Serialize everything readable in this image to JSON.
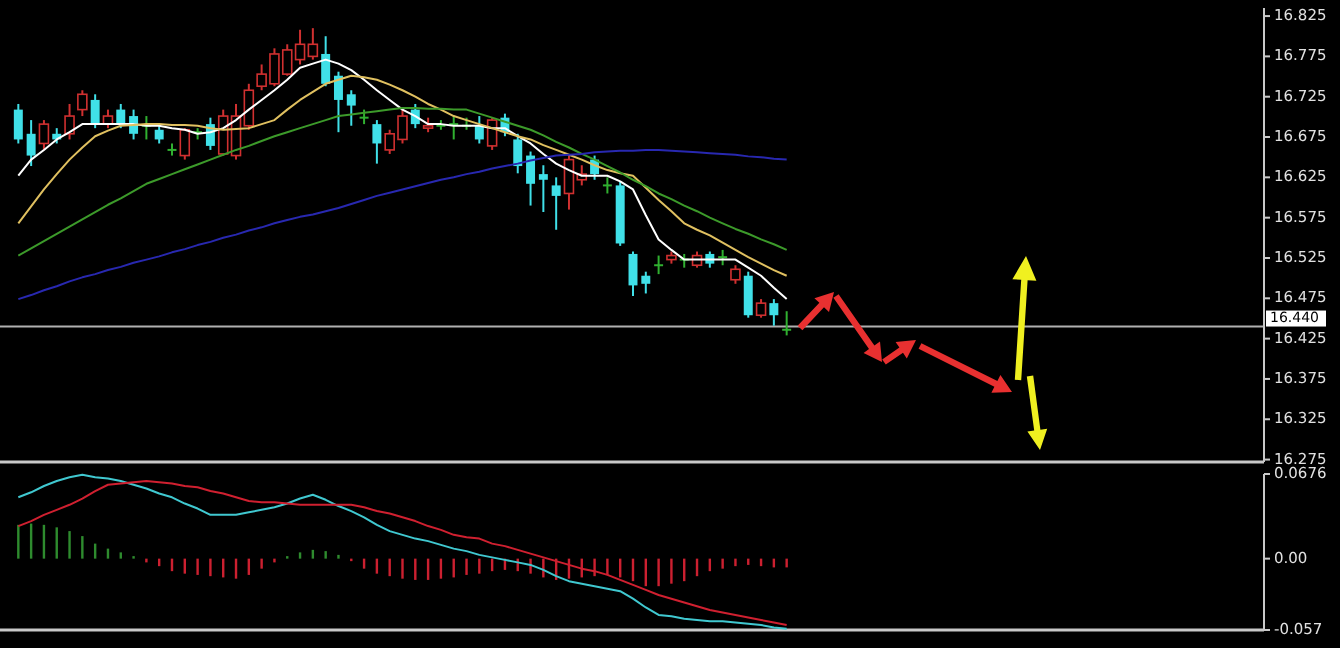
{
  "chart_data": [
    {
      "type": "candlestick",
      "categories": [
        null,
        null,
        null,
        null,
        null,
        null,
        null,
        null,
        null,
        null,
        null,
        null,
        null,
        null,
        null,
        null,
        null,
        null,
        null,
        null,
        null,
        null,
        null,
        null,
        null,
        null,
        null,
        null,
        null,
        null,
        null,
        null,
        null,
        null,
        null,
        null,
        null,
        null,
        null,
        null,
        null,
        null,
        null,
        null,
        null,
        null,
        null,
        null,
        null,
        null,
        null,
        null,
        null,
        null,
        null,
        null,
        null,
        null,
        null,
        null,
        null,
        null,
        null,
        null,
        null,
        null,
        null,
        null,
        null,
        null,
        null,
        null,
        null,
        null,
        null,
        null,
        null,
        null,
        null,
        null,
        null,
        null,
        null,
        null,
        null,
        null,
        null,
        null,
        null,
        null,
        null,
        null,
        null,
        null,
        null,
        null,
        null
      ],
      "ohlc": [
        [
          16.709,
          16.716,
          16.667,
          16.672
        ],
        [
          16.679,
          16.696,
          16.639,
          16.652
        ],
        [
          16.667,
          16.696,
          16.659,
          16.691
        ],
        [
          16.679,
          16.686,
          16.667,
          16.672
        ],
        [
          16.679,
          16.716,
          16.672,
          16.701
        ],
        [
          16.709,
          16.733,
          16.701,
          16.728
        ],
        [
          16.721,
          16.728,
          16.686,
          16.691
        ],
        [
          16.691,
          16.709,
          16.686,
          16.701
        ],
        [
          16.709,
          16.716,
          16.686,
          16.691
        ],
        [
          16.701,
          16.709,
          16.672,
          16.679
        ],
        [
          16.689,
          16.701,
          16.672,
          16.689
        ],
        [
          16.684,
          16.691,
          16.667,
          16.672
        ],
        [
          16.659,
          16.667,
          16.652,
          16.659
        ],
        [
          16.652,
          16.686,
          16.647,
          16.684
        ],
        [
          16.681,
          16.686,
          16.672,
          16.681
        ],
        [
          16.691,
          16.699,
          16.659,
          16.664
        ],
        [
          16.654,
          16.709,
          16.652,
          16.701
        ],
        [
          16.652,
          16.716,
          16.647,
          16.701
        ],
        [
          16.689,
          16.741,
          16.684,
          16.733
        ],
        [
          16.738,
          16.765,
          16.733,
          16.753
        ],
        [
          16.741,
          16.785,
          16.738,
          16.778
        ],
        [
          16.753,
          16.79,
          16.751,
          16.783
        ],
        [
          16.771,
          16.808,
          16.765,
          16.79
        ],
        [
          16.775,
          16.81,
          16.771,
          16.79
        ],
        [
          16.778,
          16.8,
          16.738,
          16.741
        ],
        [
          16.751,
          16.756,
          16.681,
          16.721
        ],
        [
          16.728,
          16.733,
          16.689,
          16.714
        ],
        [
          16.699,
          16.709,
          16.691,
          16.699
        ],
        [
          16.691,
          16.696,
          16.642,
          16.667
        ],
        [
          16.659,
          16.684,
          16.654,
          16.679
        ],
        [
          16.672,
          16.709,
          16.667,
          16.701
        ],
        [
          16.709,
          16.716,
          16.686,
          16.691
        ],
        [
          16.686,
          16.699,
          16.681,
          16.689
        ],
        [
          16.689,
          16.696,
          16.684,
          16.689
        ],
        [
          16.691,
          16.701,
          16.672,
          16.691
        ],
        [
          16.689,
          16.699,
          16.684,
          16.689
        ],
        [
          16.689,
          16.701,
          16.667,
          16.672
        ],
        [
          16.664,
          16.699,
          16.659,
          16.696
        ],
        [
          16.699,
          16.704,
          16.676,
          16.681
        ],
        [
          16.672,
          16.679,
          16.63,
          16.639
        ],
        [
          16.652,
          16.657,
          16.59,
          16.617
        ],
        [
          16.629,
          16.64,
          16.582,
          16.622
        ],
        [
          16.615,
          16.625,
          16.56,
          16.602
        ],
        [
          16.605,
          16.652,
          16.585,
          16.647
        ],
        [
          16.622,
          16.64,
          16.615,
          16.629
        ],
        [
          16.647,
          16.652,
          16.622,
          16.629
        ],
        [
          16.615,
          16.625,
          16.605,
          16.615
        ],
        [
          16.615,
          16.62,
          16.54,
          16.543
        ],
        [
          16.53,
          16.533,
          16.478,
          16.491
        ],
        [
          16.503,
          16.508,
          16.481,
          16.493
        ],
        [
          16.516,
          16.528,
          16.505,
          16.516
        ],
        [
          16.523,
          16.533,
          16.518,
          16.528
        ],
        [
          16.523,
          16.53,
          16.513,
          16.523
        ],
        [
          16.516,
          16.533,
          16.513,
          16.528
        ],
        [
          16.53,
          16.533,
          16.513,
          16.518
        ],
        [
          16.526,
          16.535,
          16.516,
          16.526
        ],
        [
          16.498,
          16.516,
          16.493,
          16.511
        ],
        [
          16.503,
          16.508,
          16.451,
          16.454
        ],
        [
          16.454,
          16.474,
          16.451,
          16.469
        ],
        [
          16.469,
          16.474,
          16.441,
          16.454
        ],
        [
          16.436,
          16.459,
          16.429,
          16.436
        ],
        null,
        null,
        null,
        null,
        null,
        null,
        null,
        null,
        null,
        null,
        null,
        null,
        null,
        null,
        null,
        null,
        null,
        null,
        null,
        null,
        null,
        null,
        null,
        null,
        null,
        null,
        null,
        null,
        null,
        null,
        null,
        null,
        null,
        null,
        null,
        null
      ],
      "series": [
        {
          "type": "line",
          "color": "#ffffff",
          "values": [
            16.627,
            16.647,
            16.659,
            16.672,
            16.681,
            16.691,
            16.691,
            16.691,
            16.691,
            16.691,
            16.689,
            16.689,
            16.686,
            16.684,
            16.679,
            16.681,
            16.686,
            16.696,
            16.709,
            16.721,
            16.733,
            16.746,
            16.761,
            16.766,
            16.771,
            16.766,
            16.758,
            16.746,
            16.733,
            16.721,
            16.709,
            16.701,
            16.691,
            16.691,
            16.689,
            16.689,
            16.689,
            16.686,
            16.686,
            16.676,
            16.667,
            16.654,
            16.642,
            16.634,
            16.627,
            16.627,
            16.627,
            16.62,
            16.61,
            16.578,
            16.548,
            16.535,
            16.523,
            16.523,
            16.523,
            16.523,
            16.523,
            16.513,
            16.503,
            16.488,
            16.474,
            null,
            null,
            null,
            null,
            null,
            null,
            null,
            null,
            null,
            null,
            null,
            null,
            null,
            null,
            null,
            null,
            null,
            null,
            null,
            null,
            null,
            null,
            null,
            null,
            null,
            null,
            null,
            null,
            null,
            null,
            null,
            null,
            null,
            null,
            null,
            null
          ]
        },
        {
          "type": "line",
          "color": "#e0c060",
          "values": [
            16.568,
            16.589,
            16.61,
            16.629,
            16.647,
            16.662,
            16.676,
            16.683,
            16.689,
            16.69,
            16.691,
            16.691,
            16.69,
            16.69,
            16.689,
            16.686,
            16.684,
            16.685,
            16.686,
            16.691,
            16.696,
            16.709,
            16.721,
            16.731,
            16.741,
            16.746,
            16.751,
            16.749,
            16.746,
            16.74,
            16.733,
            16.725,
            16.716,
            16.709,
            16.701,
            16.696,
            16.691,
            16.686,
            16.681,
            16.676,
            16.672,
            16.665,
            16.659,
            16.653,
            16.647,
            16.64,
            16.634,
            16.63,
            16.627,
            16.612,
            16.597,
            16.583,
            16.568,
            16.56,
            16.553,
            16.544,
            16.535,
            16.526,
            16.518,
            16.51,
            16.503,
            null,
            null,
            null,
            null,
            null,
            null,
            null,
            null,
            null,
            null,
            null,
            null,
            null,
            null,
            null,
            null,
            null,
            null,
            null,
            null,
            null,
            null,
            null,
            null,
            null,
            null,
            null,
            null,
            null,
            null,
            null,
            null,
            null,
            null,
            null,
            null
          ]
        },
        {
          "type": "line",
          "color": "#3c9a2a",
          "values": [
            16.528,
            16.537,
            16.546,
            16.555,
            16.564,
            16.573,
            16.582,
            16.591,
            16.599,
            16.608,
            16.617,
            16.623,
            16.629,
            16.635,
            16.641,
            16.647,
            16.653,
            16.659,
            16.664,
            16.67,
            16.676,
            16.681,
            16.686,
            16.691,
            16.696,
            16.701,
            16.703,
            16.705,
            16.707,
            16.709,
            16.711,
            16.711,
            16.71,
            16.71,
            16.709,
            16.709,
            16.704,
            16.699,
            16.694,
            16.689,
            16.684,
            16.677,
            16.669,
            16.662,
            16.654,
            16.647,
            16.639,
            16.631,
            16.622,
            16.614,
            16.605,
            16.598,
            16.59,
            16.583,
            16.575,
            16.568,
            16.561,
            16.555,
            16.548,
            16.542,
            16.535,
            null,
            null,
            null,
            null,
            null,
            null,
            null,
            null,
            null,
            null,
            null,
            null,
            null,
            null,
            null,
            null,
            null,
            null,
            null,
            null,
            null,
            null,
            null,
            null,
            null,
            null,
            null,
            null,
            null,
            null,
            null,
            null,
            null,
            null,
            null,
            null
          ]
        },
        {
          "type": "line",
          "color": "#2828b0",
          "values": [
            16.474,
            16.479,
            16.485,
            16.49,
            16.496,
            16.501,
            16.505,
            16.51,
            16.514,
            16.519,
            16.523,
            16.527,
            16.532,
            16.536,
            16.541,
            16.545,
            16.55,
            16.554,
            16.559,
            16.563,
            16.568,
            16.572,
            16.576,
            16.579,
            16.583,
            16.587,
            16.592,
            16.597,
            16.602,
            16.606,
            16.61,
            16.614,
            16.618,
            16.622,
            16.625,
            16.629,
            16.632,
            16.636,
            16.639,
            16.642,
            16.646,
            16.649,
            16.652,
            16.653,
            16.654,
            16.656,
            16.657,
            16.658,
            16.658,
            16.659,
            16.659,
            16.658,
            16.657,
            16.656,
            16.655,
            16.654,
            16.653,
            16.651,
            16.65,
            16.648,
            16.647,
            null,
            null,
            null,
            null,
            null,
            null,
            null,
            null,
            null,
            null,
            null,
            null,
            null,
            null,
            null,
            null,
            null,
            null,
            null,
            null,
            null,
            null,
            null,
            null,
            null,
            null,
            null,
            null,
            null,
            null,
            null,
            null,
            null,
            null,
            null,
            null
          ]
        }
      ],
      "ylim": [
        16.272,
        16.835
      ],
      "yticks": [
        16.275,
        16.325,
        16.375,
        16.425,
        16.475,
        16.525,
        16.575,
        16.625,
        16.675,
        16.725,
        16.775,
        16.825
      ],
      "ref_lines": [
        {
          "axis": "y",
          "value": 16.44,
          "label": "16.440",
          "color": "#b0b0b0"
        }
      ],
      "tick_labels": "y"
    },
    {
      "type": "bar",
      "categories": [
        null,
        null,
        null,
        null,
        null,
        null,
        null,
        null,
        null,
        null,
        null,
        null,
        null,
        null,
        null,
        null,
        null,
        null,
        null,
        null,
        null,
        null,
        null,
        null,
        null,
        null,
        null,
        null,
        null,
        null,
        null,
        null,
        null,
        null,
        null,
        null,
        null,
        null,
        null,
        null,
        null,
        null,
        null,
        null,
        null,
        null,
        null,
        null,
        null,
        null,
        null,
        null,
        null,
        null,
        null,
        null,
        null,
        null,
        null,
        null,
        null,
        null,
        null,
        null,
        null,
        null,
        null,
        null,
        null,
        null,
        null,
        null,
        null,
        null,
        null,
        null,
        null,
        null,
        null,
        null,
        null,
        null,
        null,
        null,
        null,
        null,
        null,
        null,
        null,
        null,
        null,
        null,
        null,
        null,
        null,
        null,
        null
      ],
      "values": [
        0.027,
        0.028,
        0.027,
        0.025,
        0.022,
        0.018,
        0.012,
        0.008,
        0.005,
        0.002,
        -0.003,
        -0.006,
        -0.01,
        -0.012,
        -0.013,
        -0.014,
        -0.015,
        -0.016,
        -0.013,
        -0.008,
        -0.003,
        0.002,
        0.005,
        0.007,
        0.006,
        0.003,
        -0.002,
        -0.008,
        -0.012,
        -0.014,
        -0.016,
        -0.017,
        -0.017,
        -0.016,
        -0.015,
        -0.013,
        -0.012,
        -0.01,
        -0.009,
        -0.01,
        -0.012,
        -0.015,
        -0.017,
        -0.016,
        -0.015,
        -0.014,
        -0.013,
        -0.015,
        -0.018,
        -0.022,
        -0.022,
        -0.02,
        -0.018,
        -0.014,
        -0.01,
        -0.008,
        -0.006,
        -0.005,
        -0.006,
        -0.007,
        -0.007,
        null,
        null,
        null,
        null,
        null,
        null,
        null,
        null,
        null,
        null,
        null,
        null,
        null,
        null,
        null,
        null,
        null,
        null,
        null,
        null,
        null,
        null,
        null,
        null,
        null,
        null,
        null,
        null,
        null,
        null,
        null,
        null,
        null,
        null,
        null,
        null
      ],
      "colors": [
        "#2e8b2e",
        "#2e8b2e",
        "#2e8b2e",
        "#2e8b2e",
        "#2e8b2e",
        "#2e8b2e",
        "#2e8b2e",
        "#2e8b2e",
        "#2e8b2e",
        "#2e8b2e",
        "#cc2030",
        "#cc2030",
        "#cc2030",
        "#cc2030",
        "#cc2030",
        "#cc2030",
        "#cc2030",
        "#cc2030",
        "#cc2030",
        "#cc2030",
        "#cc2030",
        "#2e8b2e",
        "#2e8b2e",
        "#2e8b2e",
        "#2e8b2e",
        "#2e8b2e",
        "#cc2030",
        "#cc2030",
        "#cc2030",
        "#cc2030",
        "#cc2030",
        "#cc2030",
        "#cc2030",
        "#cc2030",
        "#cc2030",
        "#cc2030",
        "#cc2030",
        "#cc2030",
        "#cc2030",
        "#cc2030",
        "#cc2030",
        "#cc2030",
        "#cc2030",
        "#cc2030",
        "#cc2030",
        "#cc2030",
        "#cc2030",
        "#cc2030",
        "#cc2030",
        "#cc2030",
        "#cc2030",
        "#cc2030",
        "#cc2030",
        "#cc2030",
        "#cc2030",
        "#cc2030",
        "#cc2030",
        "#cc2030",
        "#cc2030",
        "#cc2030",
        "#cc2030",
        null,
        null,
        null,
        null,
        null,
        null,
        null,
        null,
        null,
        null,
        null,
        null,
        null,
        null,
        null,
        null,
        null,
        null,
        null,
        null,
        null,
        null,
        null,
        null,
        null,
        null,
        null,
        null,
        null,
        null,
        null,
        null,
        null,
        null,
        null,
        null
      ],
      "series": [
        {
          "type": "line",
          "color": "#40c8d0",
          "values": [
            0.049,
            0.053,
            0.058,
            0.062,
            0.065,
            0.067,
            0.065,
            0.064,
            0.062,
            0.059,
            0.056,
            0.052,
            0.049,
            0.044,
            0.04,
            0.035,
            0.035,
            0.035,
            0.037,
            0.039,
            0.041,
            0.044,
            0.048,
            0.051,
            0.047,
            0.042,
            0.038,
            0.033,
            0.027,
            0.022,
            0.019,
            0.016,
            0.014,
            0.011,
            0.008,
            0.006,
            0.003,
            0.001,
            -0.001,
            -0.003,
            -0.005,
            -0.009,
            -0.014,
            -0.018,
            -0.02,
            -0.022,
            -0.024,
            -0.026,
            -0.032,
            -0.039,
            -0.045,
            -0.046,
            -0.048,
            -0.049,
            -0.05,
            -0.05,
            -0.051,
            -0.052,
            -0.053,
            -0.055,
            -0.056,
            null,
            null,
            null,
            null,
            null,
            null,
            null,
            null,
            null,
            null,
            null,
            null,
            null,
            null,
            null,
            null,
            null,
            null,
            null,
            null,
            null,
            null,
            null,
            null,
            null,
            null,
            null,
            null,
            null,
            null,
            null,
            null,
            null,
            null,
            null,
            null
          ]
        },
        {
          "type": "line",
          "color": "#d02030",
          "values": [
            0.026,
            0.03,
            0.035,
            0.039,
            0.043,
            0.048,
            0.054,
            0.059,
            0.06,
            0.061,
            0.062,
            0.061,
            0.06,
            0.058,
            0.057,
            0.054,
            0.052,
            0.049,
            0.046,
            0.045,
            0.045,
            0.044,
            0.043,
            0.043,
            0.043,
            0.043,
            0.043,
            0.041,
            0.038,
            0.036,
            0.033,
            0.03,
            0.026,
            0.023,
            0.019,
            0.017,
            0.016,
            0.012,
            0.01,
            0.007,
            0.004,
            0.001,
            -0.002,
            -0.005,
            -0.008,
            -0.01,
            -0.013,
            -0.017,
            -0.021,
            -0.025,
            -0.029,
            -0.032,
            -0.035,
            -0.038,
            -0.041,
            -0.043,
            -0.045,
            -0.047,
            -0.049,
            -0.051,
            -0.053,
            null,
            null,
            null,
            null,
            null,
            null,
            null,
            null,
            null,
            null,
            null,
            null,
            null,
            null,
            null,
            null,
            null,
            null,
            null,
            null,
            null,
            null,
            null,
            null,
            null,
            null,
            null,
            null,
            null,
            null,
            null,
            null,
            null,
            null,
            null,
            null
          ]
        }
      ],
      "ylim": [
        -0.057,
        0.0676
      ],
      "yticks": [
        0.0676,
        {
          "value": 0,
          "label": "0.00"
        },
        -0.057
      ],
      "tick_labels": "y"
    }
  ]
}
